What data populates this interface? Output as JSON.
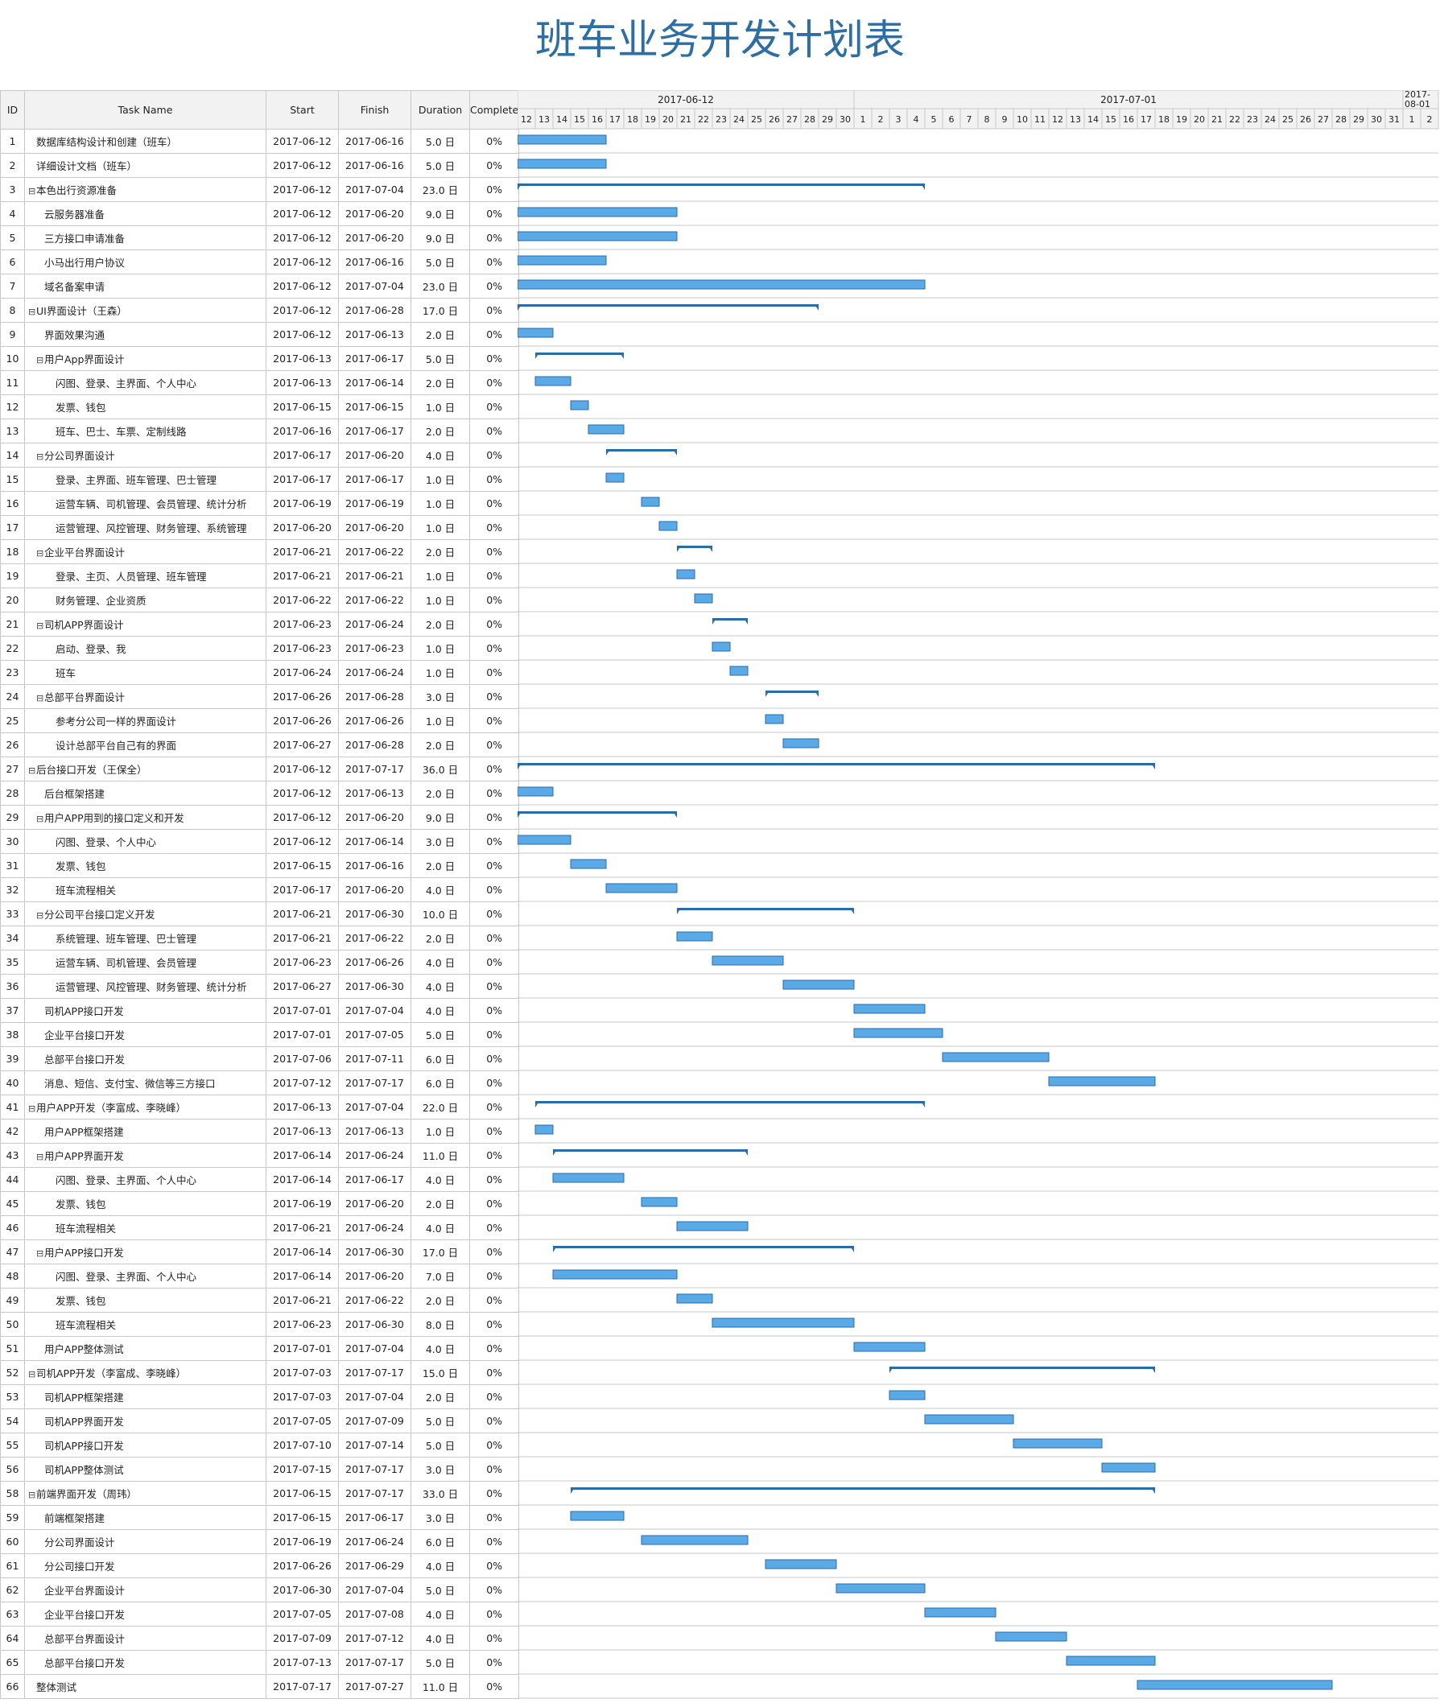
{
  "title": "班车业务开发计划表",
  "columns": {
    "id": "ID",
    "name": "Task Name",
    "start": "Start",
    "finish": "Finish",
    "duration": "Duration",
    "complete": "Complete"
  },
  "chart_data": {
    "type": "gantt",
    "timeline": {
      "start": "2017-06-12",
      "end": "2017-08-02",
      "groups": [
        "2017-06-12",
        "2017-07-01",
        "2017-08-01"
      ]
    },
    "colors": {
      "bar": "#5aaae8",
      "bar_border": "#2a6ca8",
      "summary": "#2a6ca8"
    },
    "tasks": [
      {
        "id": "1",
        "name": "数据库结构设计和创建（班车）",
        "start": "2017-06-12",
        "finish": "2017-06-16",
        "duration": "5.0 日",
        "complete": "0%",
        "level": 1,
        "summary": false
      },
      {
        "id": "2",
        "name": "详细设计文档（班车）",
        "start": "2017-06-12",
        "finish": "2017-06-16",
        "duration": "5.0 日",
        "complete": "0%",
        "level": 1,
        "summary": false
      },
      {
        "id": "3",
        "name": "本色出行资源准备",
        "start": "2017-06-12",
        "finish": "2017-07-04",
        "duration": "23.0 日",
        "complete": "0%",
        "level": 0,
        "summary": true
      },
      {
        "id": "4",
        "name": "云服务器准备",
        "start": "2017-06-12",
        "finish": "2017-06-20",
        "duration": "9.0 日",
        "complete": "0%",
        "level": 2,
        "summary": false
      },
      {
        "id": "5",
        "name": "三方接口申请准备",
        "start": "2017-06-12",
        "finish": "2017-06-20",
        "duration": "9.0 日",
        "complete": "0%",
        "level": 2,
        "summary": false
      },
      {
        "id": "6",
        "name": "小马出行用户协议",
        "start": "2017-06-12",
        "finish": "2017-06-16",
        "duration": "5.0 日",
        "complete": "0%",
        "level": 2,
        "summary": false
      },
      {
        "id": "7",
        "name": "域名备案申请",
        "start": "2017-06-12",
        "finish": "2017-07-04",
        "duration": "23.0 日",
        "complete": "0%",
        "level": 2,
        "summary": false
      },
      {
        "id": "8",
        "name": "UI界面设计（王森）",
        "start": "2017-06-12",
        "finish": "2017-06-28",
        "duration": "17.0 日",
        "complete": "0%",
        "level": 0,
        "summary": true
      },
      {
        "id": "9",
        "name": "界面效果沟通",
        "start": "2017-06-12",
        "finish": "2017-06-13",
        "duration": "2.0 日",
        "complete": "0%",
        "level": 2,
        "summary": false
      },
      {
        "id": "10",
        "name": "用户App界面设计",
        "start": "2017-06-13",
        "finish": "2017-06-17",
        "duration": "5.0 日",
        "complete": "0%",
        "level": 1,
        "summary": true
      },
      {
        "id": "11",
        "name": "闪图、登录、主界面、个人中心",
        "start": "2017-06-13",
        "finish": "2017-06-14",
        "duration": "2.0 日",
        "complete": "0%",
        "level": 3,
        "summary": false
      },
      {
        "id": "12",
        "name": "发票、钱包",
        "start": "2017-06-15",
        "finish": "2017-06-15",
        "duration": "1.0 日",
        "complete": "0%",
        "level": 3,
        "summary": false
      },
      {
        "id": "13",
        "name": "班车、巴士、车票、定制线路",
        "start": "2017-06-16",
        "finish": "2017-06-17",
        "duration": "2.0 日",
        "complete": "0%",
        "level": 3,
        "summary": false
      },
      {
        "id": "14",
        "name": "分公司界面设计",
        "start": "2017-06-17",
        "finish": "2017-06-20",
        "duration": "4.0 日",
        "complete": "0%",
        "level": 1,
        "summary": true
      },
      {
        "id": "15",
        "name": "登录、主界面、班车管理、巴士管理",
        "start": "2017-06-17",
        "finish": "2017-06-17",
        "duration": "1.0 日",
        "complete": "0%",
        "level": 3,
        "summary": false
      },
      {
        "id": "16",
        "name": "运营车辆、司机管理、会员管理、统计分析",
        "start": "2017-06-19",
        "finish": "2017-06-19",
        "duration": "1.0 日",
        "complete": "0%",
        "level": 3,
        "summary": false
      },
      {
        "id": "17",
        "name": "运营管理、风控管理、财务管理、系统管理",
        "start": "2017-06-20",
        "finish": "2017-06-20",
        "duration": "1.0 日",
        "complete": "0%",
        "level": 3,
        "summary": false
      },
      {
        "id": "18",
        "name": "企业平台界面设计",
        "start": "2017-06-21",
        "finish": "2017-06-22",
        "duration": "2.0 日",
        "complete": "0%",
        "level": 1,
        "summary": true
      },
      {
        "id": "19",
        "name": "登录、主页、人员管理、班车管理",
        "start": "2017-06-21",
        "finish": "2017-06-21",
        "duration": "1.0 日",
        "complete": "0%",
        "level": 3,
        "summary": false
      },
      {
        "id": "20",
        "name": "财务管理、企业资质",
        "start": "2017-06-22",
        "finish": "2017-06-22",
        "duration": "1.0 日",
        "complete": "0%",
        "level": 3,
        "summary": false
      },
      {
        "id": "21",
        "name": "司机APP界面设计",
        "start": "2017-06-23",
        "finish": "2017-06-24",
        "duration": "2.0 日",
        "complete": "0%",
        "level": 1,
        "summary": true
      },
      {
        "id": "22",
        "name": "启动、登录、我",
        "start": "2017-06-23",
        "finish": "2017-06-23",
        "duration": "1.0 日",
        "complete": "0%",
        "level": 3,
        "summary": false
      },
      {
        "id": "23",
        "name": "班车",
        "start": "2017-06-24",
        "finish": "2017-06-24",
        "duration": "1.0 日",
        "complete": "0%",
        "level": 3,
        "summary": false
      },
      {
        "id": "24",
        "name": "总部平台界面设计",
        "start": "2017-06-26",
        "finish": "2017-06-28",
        "duration": "3.0 日",
        "complete": "0%",
        "level": 1,
        "summary": true
      },
      {
        "id": "25",
        "name": "参考分公司一样的界面设计",
        "start": "2017-06-26",
        "finish": "2017-06-26",
        "duration": "1.0 日",
        "complete": "0%",
        "level": 3,
        "summary": false
      },
      {
        "id": "26",
        "name": "设计总部平台自己有的界面",
        "start": "2017-06-27",
        "finish": "2017-06-28",
        "duration": "2.0 日",
        "complete": "0%",
        "level": 3,
        "summary": false
      },
      {
        "id": "27",
        "name": "后台接口开发（王保全）",
        "start": "2017-06-12",
        "finish": "2017-07-17",
        "duration": "36.0 日",
        "complete": "0%",
        "level": 0,
        "summary": true
      },
      {
        "id": "28",
        "name": "后台框架搭建",
        "start": "2017-06-12",
        "finish": "2017-06-13",
        "duration": "2.0 日",
        "complete": "0%",
        "level": 2,
        "summary": false
      },
      {
        "id": "29",
        "name": "用户APP用到的接口定义和开发",
        "start": "2017-06-12",
        "finish": "2017-06-20",
        "duration": "9.0 日",
        "complete": "0%",
        "level": 1,
        "summary": true
      },
      {
        "id": "30",
        "name": "闪图、登录、个人中心",
        "start": "2017-06-12",
        "finish": "2017-06-14",
        "duration": "3.0 日",
        "complete": "0%",
        "level": 3,
        "summary": false
      },
      {
        "id": "31",
        "name": "发票、钱包",
        "start": "2017-06-15",
        "finish": "2017-06-16",
        "duration": "2.0 日",
        "complete": "0%",
        "level": 3,
        "summary": false
      },
      {
        "id": "32",
        "name": "班车流程相关",
        "start": "2017-06-17",
        "finish": "2017-06-20",
        "duration": "4.0 日",
        "complete": "0%",
        "level": 3,
        "summary": false
      },
      {
        "id": "33",
        "name": "分公司平台接口定义开发",
        "start": "2017-06-21",
        "finish": "2017-06-30",
        "duration": "10.0 日",
        "complete": "0%",
        "level": 1,
        "summary": true
      },
      {
        "id": "34",
        "name": "系统管理、班车管理、巴士管理",
        "start": "2017-06-21",
        "finish": "2017-06-22",
        "duration": "2.0 日",
        "complete": "0%",
        "level": 3,
        "summary": false
      },
      {
        "id": "35",
        "name": "运营车辆、司机管理、会员管理",
        "start": "2017-06-23",
        "finish": "2017-06-26",
        "duration": "4.0 日",
        "complete": "0%",
        "level": 3,
        "summary": false
      },
      {
        "id": "36",
        "name": "运营管理、风控管理、财务管理、统计分析",
        "start": "2017-06-27",
        "finish": "2017-06-30",
        "duration": "4.0 日",
        "complete": "0%",
        "level": 3,
        "summary": false
      },
      {
        "id": "37",
        "name": "司机APP接口开发",
        "start": "2017-07-01",
        "finish": "2017-07-04",
        "duration": "4.0 日",
        "complete": "0%",
        "level": 2,
        "summary": false
      },
      {
        "id": "38",
        "name": "企业平台接口开发",
        "start": "2017-07-01",
        "finish": "2017-07-05",
        "duration": "5.0 日",
        "complete": "0%",
        "level": 2,
        "summary": false
      },
      {
        "id": "39",
        "name": "总部平台接口开发",
        "start": "2017-07-06",
        "finish": "2017-07-11",
        "duration": "6.0 日",
        "complete": "0%",
        "level": 2,
        "summary": false
      },
      {
        "id": "40",
        "name": "消息、短信、支付宝、微信等三方接口",
        "start": "2017-07-12",
        "finish": "2017-07-17",
        "duration": "6.0 日",
        "complete": "0%",
        "level": 2,
        "summary": false
      },
      {
        "id": "41",
        "name": "用户APP开发（李富成、李晓峰）",
        "start": "2017-06-13",
        "finish": "2017-07-04",
        "duration": "22.0 日",
        "complete": "0%",
        "level": 0,
        "summary": true
      },
      {
        "id": "42",
        "name": "用户APP框架搭建",
        "start": "2017-06-13",
        "finish": "2017-06-13",
        "duration": "1.0 日",
        "complete": "0%",
        "level": 2,
        "summary": false
      },
      {
        "id": "43",
        "name": "用户APP界面开发",
        "start": "2017-06-14",
        "finish": "2017-06-24",
        "duration": "11.0 日",
        "complete": "0%",
        "level": 1,
        "summary": true
      },
      {
        "id": "44",
        "name": "闪图、登录、主界面、个人中心",
        "start": "2017-06-14",
        "finish": "2017-06-17",
        "duration": "4.0 日",
        "complete": "0%",
        "level": 3,
        "summary": false
      },
      {
        "id": "45",
        "name": "发票、钱包",
        "start": "2017-06-19",
        "finish": "2017-06-20",
        "duration": "2.0 日",
        "complete": "0%",
        "level": 3,
        "summary": false
      },
      {
        "id": "46",
        "name": "班车流程相关",
        "start": "2017-06-21",
        "finish": "2017-06-24",
        "duration": "4.0 日",
        "complete": "0%",
        "level": 3,
        "summary": false
      },
      {
        "id": "47",
        "name": "用户APP接口开发",
        "start": "2017-06-14",
        "finish": "2017-06-30",
        "duration": "17.0 日",
        "complete": "0%",
        "level": 1,
        "summary": true
      },
      {
        "id": "48",
        "name": "闪图、登录、主界面、个人中心",
        "start": "2017-06-14",
        "finish": "2017-06-20",
        "duration": "7.0 日",
        "complete": "0%",
        "level": 3,
        "summary": false
      },
      {
        "id": "49",
        "name": "发票、钱包",
        "start": "2017-06-21",
        "finish": "2017-06-22",
        "duration": "2.0 日",
        "complete": "0%",
        "level": 3,
        "summary": false
      },
      {
        "id": "50",
        "name": "班车流程相关",
        "start": "2017-06-23",
        "finish": "2017-06-30",
        "duration": "8.0 日",
        "complete": "0%",
        "level": 3,
        "summary": false
      },
      {
        "id": "51",
        "name": "用户APP整体测试",
        "start": "2017-07-01",
        "finish": "2017-07-04",
        "duration": "4.0 日",
        "complete": "0%",
        "level": 2,
        "summary": false
      },
      {
        "id": "52",
        "name": "司机APP开发（李富成、李晓峰）",
        "start": "2017-07-03",
        "finish": "2017-07-17",
        "duration": "15.0 日",
        "complete": "0%",
        "level": 0,
        "summary": true
      },
      {
        "id": "53",
        "name": "司机APP框架搭建",
        "start": "2017-07-03",
        "finish": "2017-07-04",
        "duration": "2.0 日",
        "complete": "0%",
        "level": 2,
        "summary": false
      },
      {
        "id": "54",
        "name": "司机APP界面开发",
        "start": "2017-07-05",
        "finish": "2017-07-09",
        "duration": "5.0 日",
        "complete": "0%",
        "level": 2,
        "summary": false
      },
      {
        "id": "55",
        "name": "司机APP接口开发",
        "start": "2017-07-10",
        "finish": "2017-07-14",
        "duration": "5.0 日",
        "complete": "0%",
        "level": 2,
        "summary": false
      },
      {
        "id": "56",
        "name": "司机APP整体测试",
        "start": "2017-07-15",
        "finish": "2017-07-17",
        "duration": "3.0 日",
        "complete": "0%",
        "level": 2,
        "summary": false
      },
      {
        "id": "58",
        "name": "前端界面开发（周玮）",
        "start": "2017-06-15",
        "finish": "2017-07-17",
        "duration": "33.0 日",
        "complete": "0%",
        "level": 0,
        "summary": true
      },
      {
        "id": "59",
        "name": "前端框架搭建",
        "start": "2017-06-15",
        "finish": "2017-06-17",
        "duration": "3.0 日",
        "complete": "0%",
        "level": 2,
        "summary": false
      },
      {
        "id": "60",
        "name": "分公司界面设计",
        "start": "2017-06-19",
        "finish": "2017-06-24",
        "duration": "6.0 日",
        "complete": "0%",
        "level": 2,
        "summary": false
      },
      {
        "id": "61",
        "name": "分公司接口开发",
        "start": "2017-06-26",
        "finish": "2017-06-29",
        "duration": "4.0 日",
        "complete": "0%",
        "level": 2,
        "summary": false
      },
      {
        "id": "62",
        "name": "企业平台界面设计",
        "start": "2017-06-30",
        "finish": "2017-07-04",
        "duration": "5.0 日",
        "complete": "0%",
        "level": 2,
        "summary": false
      },
      {
        "id": "63",
        "name": "企业平台接口开发",
        "start": "2017-07-05",
        "finish": "2017-07-08",
        "duration": "4.0 日",
        "complete": "0%",
        "level": 2,
        "summary": false
      },
      {
        "id": "64",
        "name": "总部平台界面设计",
        "start": "2017-07-09",
        "finish": "2017-07-12",
        "duration": "4.0 日",
        "complete": "0%",
        "level": 2,
        "summary": false
      },
      {
        "id": "65",
        "name": "总部平台接口开发",
        "start": "2017-07-13",
        "finish": "2017-07-17",
        "duration": "5.0 日",
        "complete": "0%",
        "level": 2,
        "summary": false
      },
      {
        "id": "66",
        "name": "整体测试",
        "start": "2017-07-17",
        "finish": "2017-07-27",
        "duration": "11.0 日",
        "complete": "0%",
        "level": 1,
        "summary": false
      }
    ]
  }
}
